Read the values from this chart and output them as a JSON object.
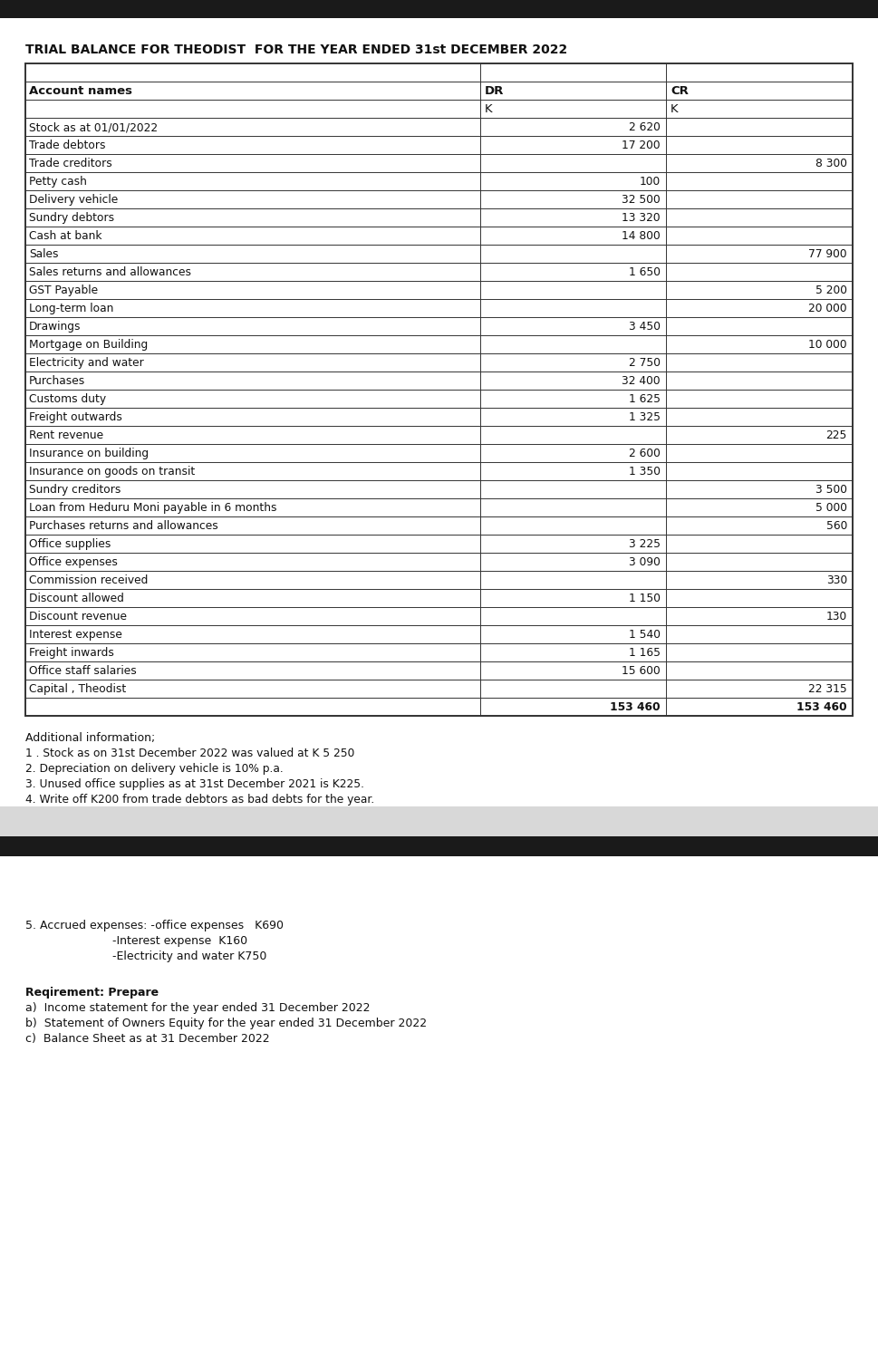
{
  "title": "TRIAL BALANCE FOR THEODIST  FOR THE YEAR ENDED 31st DECEMBER 2022",
  "col_headers": [
    "Account names",
    "DR",
    "CR"
  ],
  "col_subheaders": [
    "",
    "K",
    "K"
  ],
  "rows": [
    [
      "Stock as at 01/01/2022",
      "2 620",
      ""
    ],
    [
      "Trade debtors",
      "17 200",
      ""
    ],
    [
      "Trade creditors",
      "",
      "8 300"
    ],
    [
      "Petty cash",
      "100",
      ""
    ],
    [
      "Delivery vehicle",
      "32 500",
      ""
    ],
    [
      "Sundry debtors",
      "13 320",
      ""
    ],
    [
      "Cash at bank",
      "14 800",
      ""
    ],
    [
      "Sales",
      "",
      "77 900"
    ],
    [
      "Sales returns and allowances",
      "1 650",
      ""
    ],
    [
      "GST Payable",
      "",
      "5 200"
    ],
    [
      "Long-term loan",
      "",
      "20 000"
    ],
    [
      "Drawings",
      "3 450",
      ""
    ],
    [
      "Mortgage on Building",
      "",
      "10 000"
    ],
    [
      "Electricity and water",
      "2 750",
      ""
    ],
    [
      "Purchases",
      "32 400",
      ""
    ],
    [
      "Customs duty",
      "1 625",
      ""
    ],
    [
      "Freight outwards",
      "1 325",
      ""
    ],
    [
      "Rent revenue",
      "",
      "225"
    ],
    [
      "Insurance on building",
      "2 600",
      ""
    ],
    [
      "Insurance on goods on transit",
      "1 350",
      ""
    ],
    [
      "Sundry creditors",
      "",
      "3 500"
    ],
    [
      "Loan from Heduru Moni payable in 6 months",
      "",
      "5 000"
    ],
    [
      "Purchases returns and allowances",
      "",
      "560"
    ],
    [
      "Office supplies",
      "3 225",
      ""
    ],
    [
      "Office expenses",
      "3 090",
      ""
    ],
    [
      "Commission received",
      "",
      "330"
    ],
    [
      "Discount allowed",
      "1 150",
      ""
    ],
    [
      "Discount revenue",
      "",
      "130"
    ],
    [
      "Interest expense",
      "1 540",
      ""
    ],
    [
      "Freight inwards",
      "1 165",
      ""
    ],
    [
      "Office staff salaries",
      "15 600",
      ""
    ],
    [
      "Capital , Theodist",
      "",
      "22 315"
    ]
  ],
  "totals_dr": "153 460",
  "totals_cr": "153 460",
  "additional_info_title": "Additional information;",
  "additional_info": [
    "1 . Stock as on 31st December 2022 was valued at K 5 250",
    "2. Depreciation on delivery vehicle is 10% p.a.",
    "3. Unused office supplies as at 31st December 2021 is K225.",
    "4. Write off K200 from trade debtors as bad debts for the year."
  ],
  "accrued_title": "5. Accrued expenses: -office expenses   K690",
  "accrued_line2": "                        -Interest expense  K160",
  "accrued_line3": "                        -Electricity and water K750",
  "requirement_title": "Reqirement: Prepare",
  "requirements": [
    "a)  Income statement for the year ended 31 December 2022",
    "b)  Statement of Owners Equity for the year ended 31 December 2022",
    "c)  Balance Sheet as at 31 December 2022"
  ],
  "page_bg": "#d8d8d8",
  "table_bg": "#ffffff",
  "dark_bar_color": "#1a1a1a",
  "border_color": "#333333",
  "text_color": "#111111",
  "light_section_bg": "#f5f5f5"
}
